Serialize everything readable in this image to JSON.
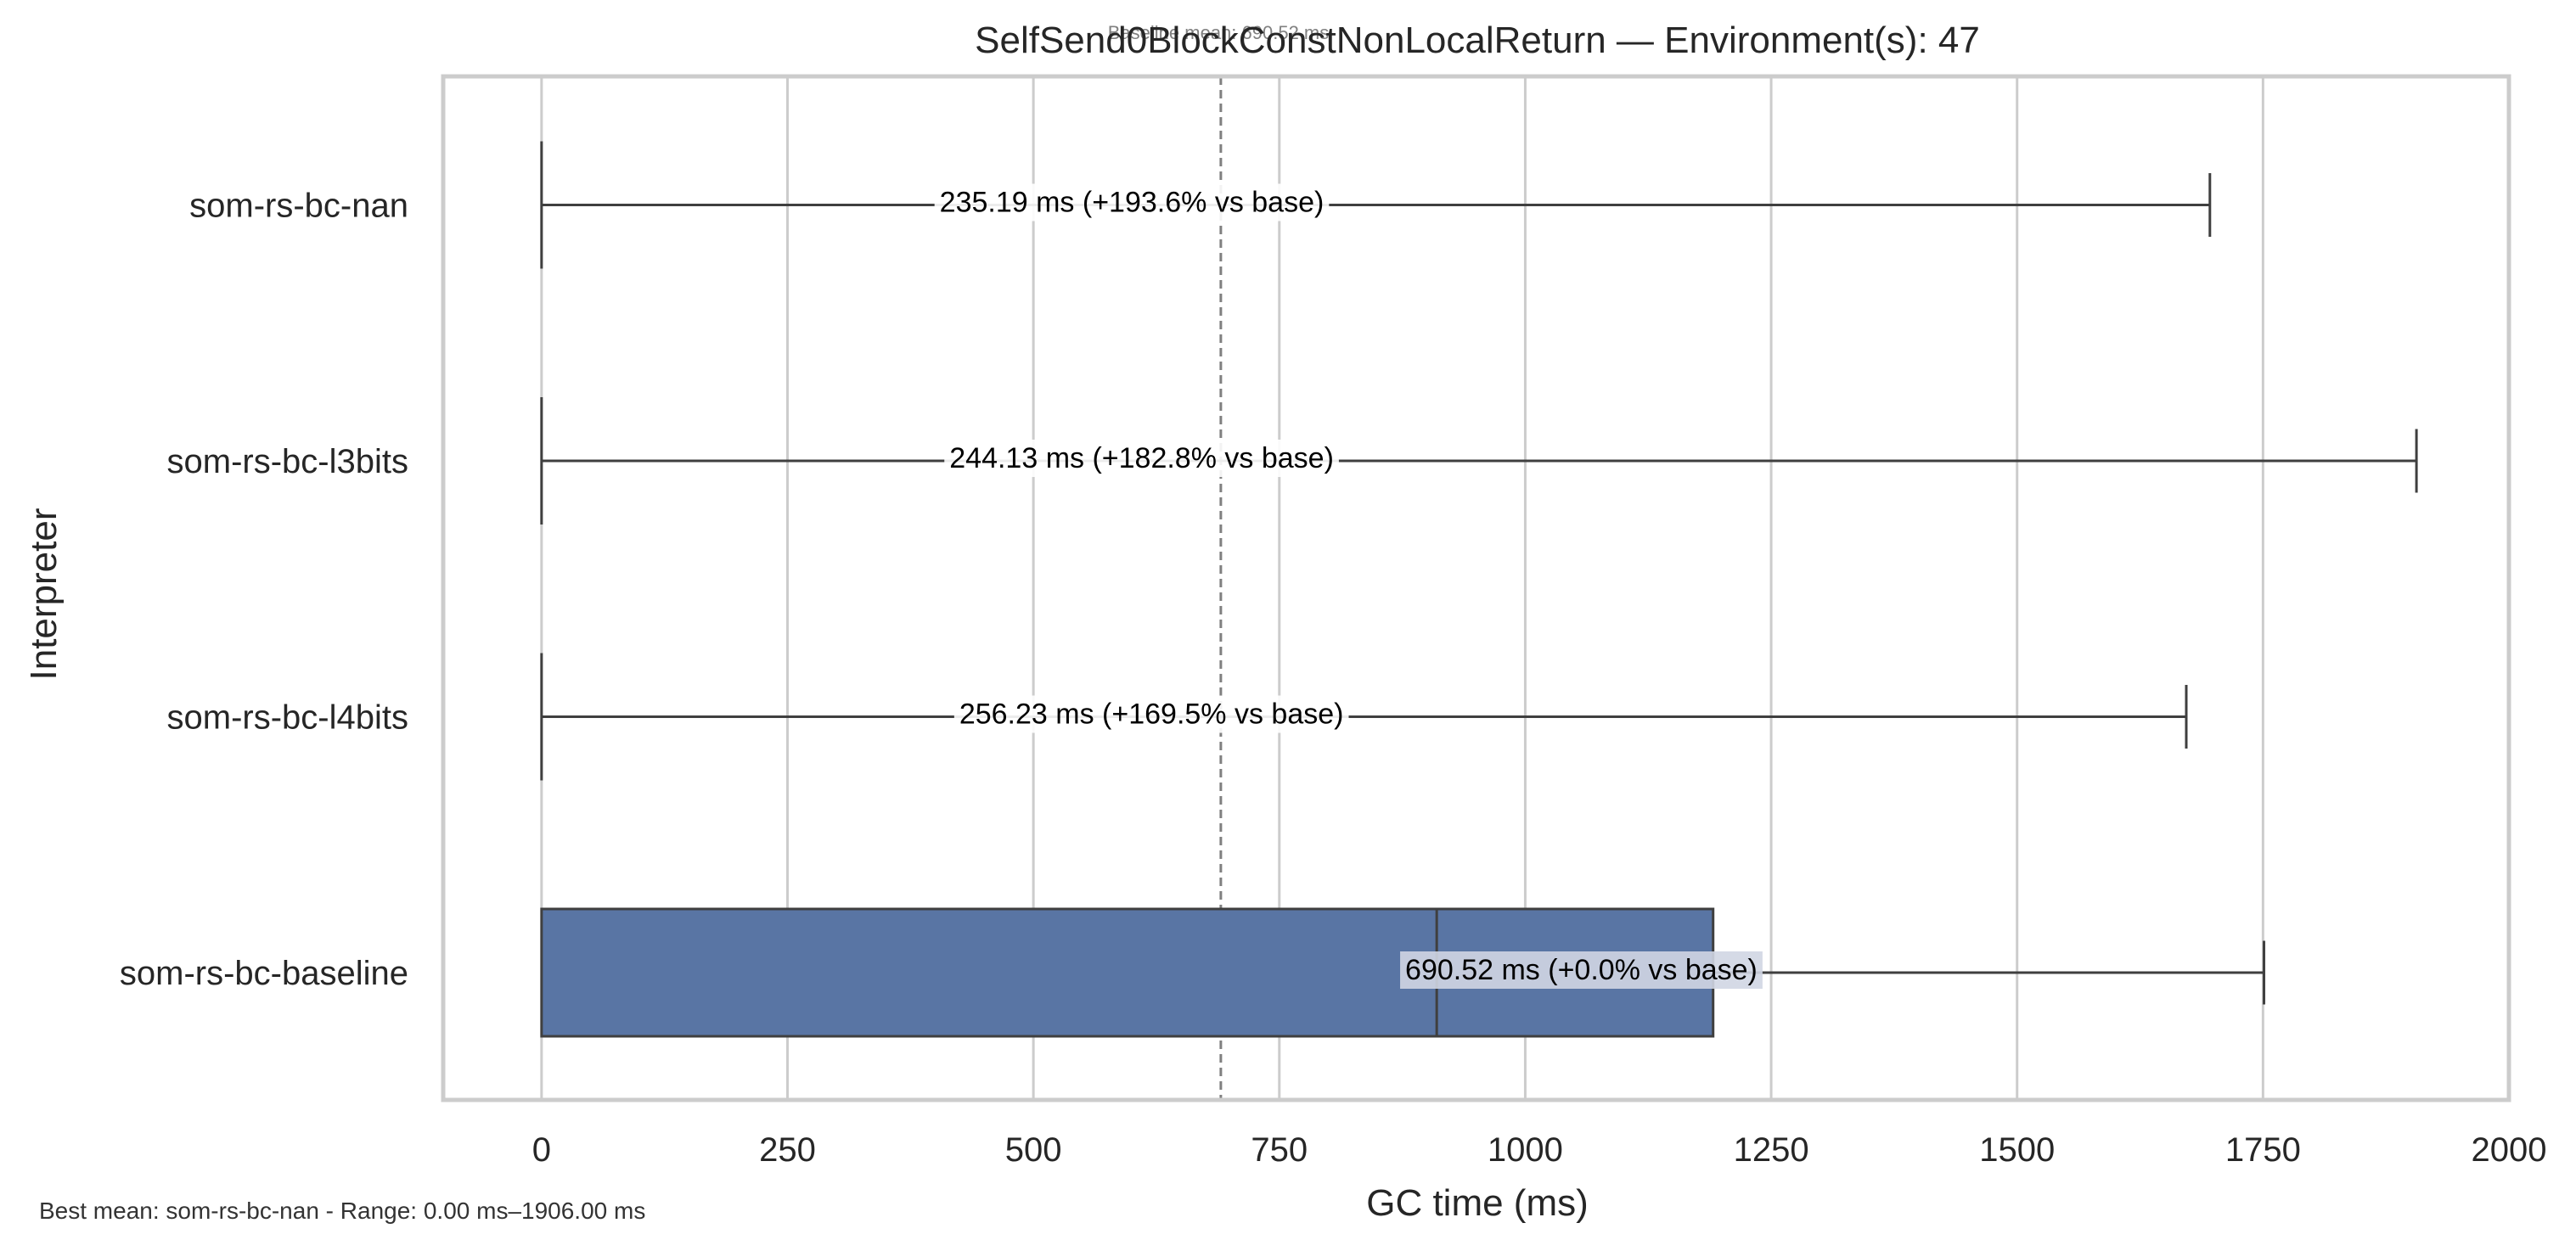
{
  "chart_data": {
    "type": "box",
    "orientation": "horizontal",
    "title": "SelfSend0BlockConstNonLocalReturn — Environment(s): 47",
    "baseline_label": "Baseline mean: 690.52 ms",
    "xlabel": "GC time (ms)",
    "ylabel": "Interpreter",
    "xlim": [
      -100,
      2000
    ],
    "xticks": [
      0,
      250,
      500,
      750,
      1000,
      1250,
      1500,
      1750,
      2000
    ],
    "grid": true,
    "baseline_mean": 690.52,
    "categories": [
      "som-rs-bc-nan",
      "som-rs-bc-l3bits",
      "som-rs-bc-l4bits",
      "som-rs-bc-baseline"
    ],
    "boxes": [
      {
        "name": "som-rs-bc-nan",
        "whisker_low": 0,
        "q1": 0,
        "median": 0,
        "q3": 0,
        "whisker_high": 1696,
        "mean_label": "235.19 ms  (+193.6% vs base)"
      },
      {
        "name": "som-rs-bc-l3bits",
        "whisker_low": 0,
        "q1": 0,
        "median": 0,
        "q3": 0,
        "whisker_high": 1906,
        "mean_label": "244.13 ms  (+182.8% vs base)"
      },
      {
        "name": "som-rs-bc-l4bits",
        "whisker_low": 0,
        "q1": 0,
        "median": 0,
        "q3": 0,
        "whisker_high": 1672,
        "mean_label": "256.23 ms  (+169.5% vs base)"
      },
      {
        "name": "som-rs-bc-baseline",
        "whisker_low": 0,
        "q1": 0,
        "median": 910,
        "q3": 1191,
        "whisker_high": 1751,
        "mean_label": "690.52 ms  (+0.0% vs base)"
      }
    ],
    "footer_note": "Best mean: som-rs-bc-nan - Range: 0.00 ms–1906.00 ms",
    "colors": {
      "box_fill": "#5975a4",
      "box_edge": "#3f3f3f",
      "grid": "#cccccc",
      "frame": "#cccccc",
      "baseline_line": "#808080",
      "label_bg": "#ffffff",
      "label_bg_on_box": "#d0d6e3"
    }
  }
}
